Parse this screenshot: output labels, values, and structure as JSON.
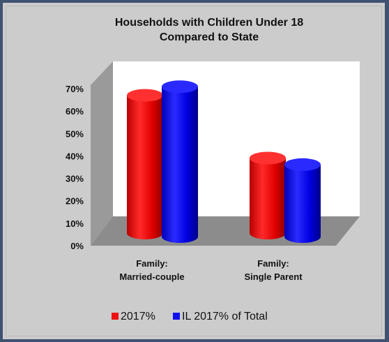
{
  "chart_data": {
    "type": "bar",
    "title_lines": [
      "Households with Children Under 18",
      "Compared to State"
    ],
    "categories": [
      {
        "lines": [
          "Family:",
          "Married-couple"
        ]
      },
      {
        "lines": [
          "Family:",
          "Single Parent"
        ]
      }
    ],
    "series": [
      {
        "name": "2017%",
        "color": "#ee1111",
        "values": [
          64,
          35
        ]
      },
      {
        "name": "IL 2017% of Total",
        "color": "#1111ee",
        "values": [
          68,
          32
        ]
      }
    ],
    "ylim": [
      0,
      70
    ],
    "yticks": [
      "0%",
      "10%",
      "20%",
      "30%",
      "40%",
      "50%",
      "60%",
      "70%"
    ],
    "legend_position": "bottom",
    "grid": false,
    "style": "3d-cylinder"
  }
}
